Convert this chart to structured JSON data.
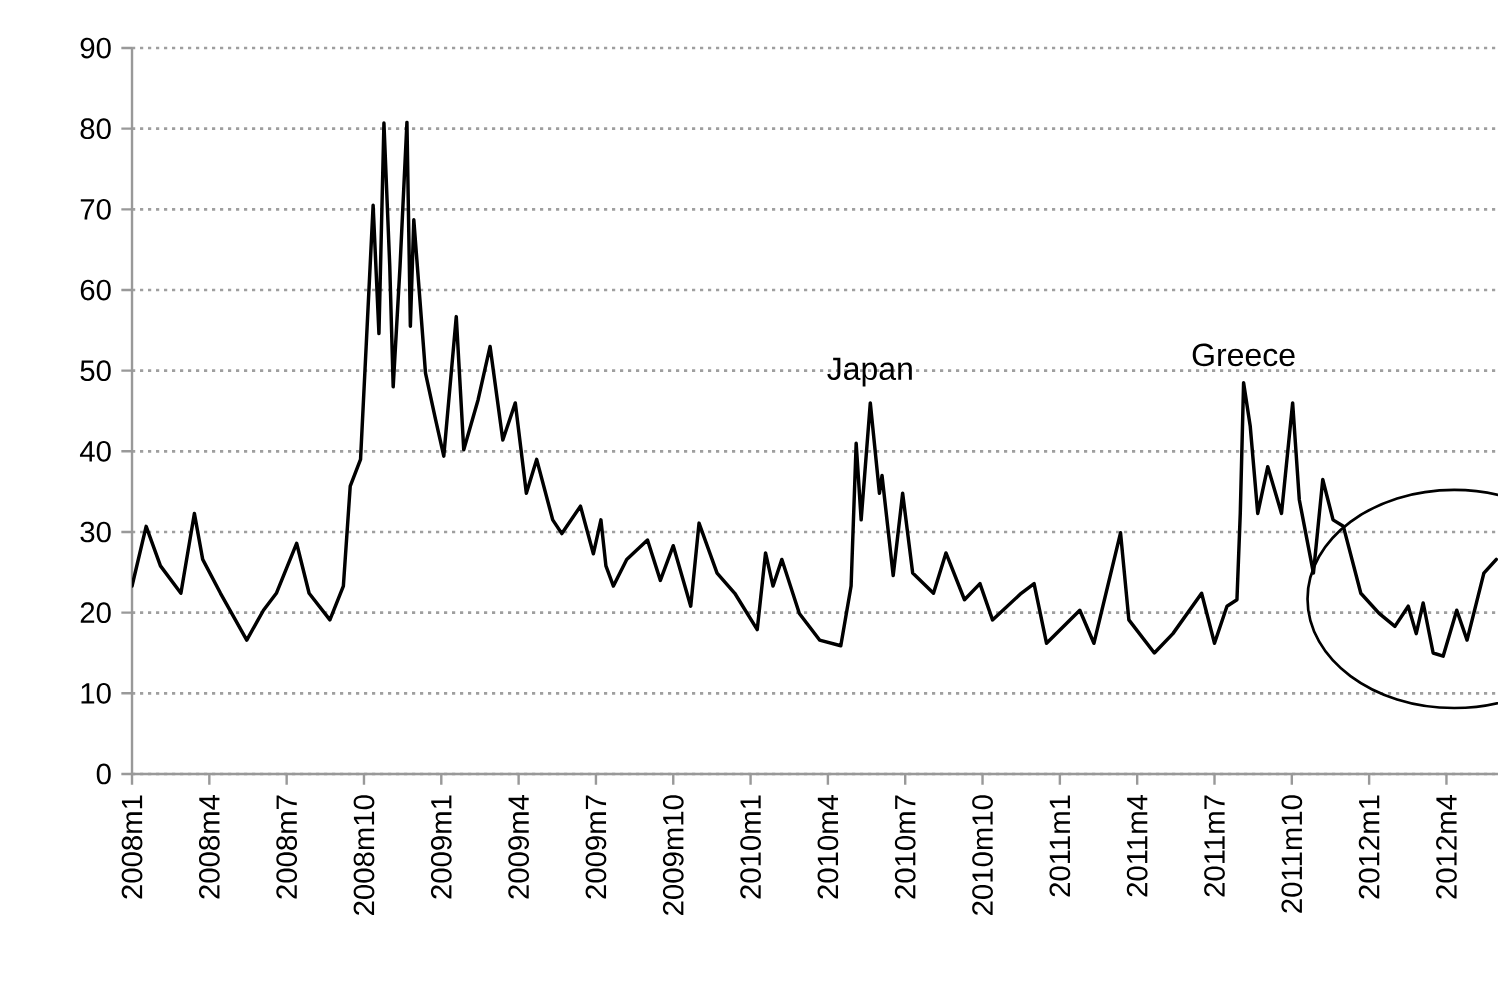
{
  "chart_data": {
    "type": "line",
    "xlim": [
      "2008-01-01",
      "2012-06-01"
    ],
    "ylim": [
      0,
      90
    ],
    "xticks": [
      {
        "value": "2008-01",
        "label": "2008m1"
      },
      {
        "value": "2008-04",
        "label": "2008m4"
      },
      {
        "value": "2008-07",
        "label": "2008m7"
      },
      {
        "value": "2008-10",
        "label": "2008m10"
      },
      {
        "value": "2009-01",
        "label": "2009m1"
      },
      {
        "value": "2009-04",
        "label": "2009m4"
      },
      {
        "value": "2009-07",
        "label": "2009m7"
      },
      {
        "value": "2009-10",
        "label": "2009m10"
      },
      {
        "value": "2010-01",
        "label": "2010m1"
      },
      {
        "value": "2010-04",
        "label": "2010m4"
      },
      {
        "value": "2010-07",
        "label": "2010m7"
      },
      {
        "value": "2010-10",
        "label": "2010m10"
      },
      {
        "value": "2011-01",
        "label": "2011m1"
      },
      {
        "value": "2011-04",
        "label": "2011m4"
      },
      {
        "value": "2011-07",
        "label": "2011m7"
      },
      {
        "value": "2011-10",
        "label": "2011m10"
      },
      {
        "value": "2012-01",
        "label": "2012m1"
      },
      {
        "value": "2012-04",
        "label": "2012m4"
      }
    ],
    "yticks": [
      0,
      10,
      20,
      30,
      40,
      50,
      60,
      70,
      80,
      90
    ],
    "grid": "y",
    "annotations": [
      {
        "text": "Japan",
        "x": "2010-05-21",
        "y": 46
      },
      {
        "text": "Greece",
        "x": "2011-08-05",
        "y": 48.5
      }
    ],
    "series": [
      {
        "color": "#000000",
        "x": [
          "2008-01-01",
          "2008-01-18",
          "2008-02-04",
          "2008-02-27",
          "2008-03-14",
          "2008-03-24",
          "2008-04-14",
          "2008-05-15",
          "2008-06-04",
          "2008-06-19",
          "2008-07-13",
          "2008-07-28",
          "2008-08-22",
          "2008-09-07",
          "2008-09-15",
          "2008-09-27",
          "2008-10-04",
          "2008-10-12",
          "2008-10-19",
          "2008-10-25",
          "2008-11-01",
          "2008-11-05",
          "2008-11-13",
          "2008-11-21",
          "2008-11-25",
          "2008-11-29",
          "2008-12-13",
          "2008-12-25",
          "2009-01-04",
          "2009-01-19",
          "2009-01-28",
          "2009-02-13",
          "2009-02-26",
          "2009-03-13",
          "2009-03-28",
          "2009-04-10",
          "2009-04-22",
          "2009-05-11",
          "2009-05-22",
          "2009-06-13",
          "2009-06-28",
          "2009-07-07",
          "2009-07-13",
          "2009-07-22",
          "2009-08-07",
          "2009-09-01",
          "2009-09-16",
          "2009-10-01",
          "2009-10-22",
          "2009-11-01",
          "2009-11-22",
          "2009-12-13",
          "2010-01-09",
          "2010-01-19",
          "2010-01-28",
          "2010-02-07",
          "2010-02-26",
          "2010-03-22",
          "2010-04-16",
          "2010-04-28",
          "2010-05-04",
          "2010-05-10",
          "2010-05-21",
          "2010-06-01",
          "2010-06-04",
          "2010-06-17",
          "2010-06-28",
          "2010-07-10",
          "2010-08-04",
          "2010-08-19",
          "2010-09-10",
          "2010-09-28",
          "2010-10-13",
          "2010-11-16",
          "2010-12-01",
          "2010-12-16",
          "2011-01-25",
          "2011-02-10",
          "2011-03-12",
          "2011-03-22",
          "2011-04-21",
          "2011-05-13",
          "2011-06-16",
          "2011-07-01",
          "2011-07-16",
          "2011-07-28",
          "2011-08-01",
          "2011-08-05",
          "2011-08-13",
          "2011-08-22",
          "2011-09-03",
          "2011-09-19",
          "2011-10-02",
          "2011-10-10",
          "2011-10-27",
          "2011-11-07",
          "2011-11-19",
          "2011-12-01",
          "2011-12-22",
          "2012-01-13",
          "2012-02-01",
          "2012-02-16",
          "2012-02-25",
          "2012-03-04",
          "2012-03-16",
          "2012-03-28",
          "2012-04-13",
          "2012-04-25",
          "2012-05-15",
          "2012-05-30"
        ],
        "values": [
          23.3,
          30.7,
          25.8,
          22.4,
          32.3,
          26.6,
          22.4,
          16.6,
          20.3,
          22.4,
          28.6,
          22.4,
          19.1,
          23.3,
          35.7,
          39,
          53.8,
          70.5,
          54.6,
          80.7,
          63,
          48,
          63,
          80.8,
          55.5,
          68.7,
          49.7,
          44,
          39.4,
          56.7,
          40.2,
          46.4,
          53,
          41.4,
          46,
          34.8,
          39,
          31.5,
          29.8,
          33.2,
          27.3,
          31.5,
          25.8,
          23.3,
          26.6,
          29,
          24,
          28.3,
          20.8,
          31.1,
          24.9,
          22.4,
          17.9,
          27.4,
          23.3,
          26.6,
          19.9,
          16.6,
          15.9,
          23.3,
          41,
          31.5,
          46,
          34.8,
          37,
          24.6,
          34.8,
          24.9,
          22.4,
          27.4,
          21.6,
          23.6,
          19.1,
          22.4,
          23.6,
          16.2,
          20.3,
          16.2,
          29.9,
          19.1,
          15,
          17.4,
          22.4,
          16.2,
          20.8,
          21.6,
          32.3,
          48.5,
          43.1,
          32.3,
          38.1,
          32.3,
          46,
          34,
          24.9,
          36.5,
          31.5,
          30.7,
          22.4,
          19.9,
          18.3,
          20.8,
          17.4,
          21.2,
          15,
          14.6,
          20.3,
          16.6,
          24.9,
          26.6
        ]
      }
    ]
  }
}
